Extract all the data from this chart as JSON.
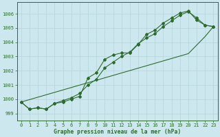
{
  "title": "Graphe pression niveau de la mer (hPa)",
  "x": [
    0,
    1,
    2,
    3,
    4,
    5,
    6,
    7,
    8,
    9,
    10,
    11,
    12,
    13,
    14,
    15,
    16,
    17,
    18,
    19,
    20,
    21,
    22,
    23
  ],
  "y_line1": [
    999.8,
    999.3,
    999.4,
    999.3,
    999.7,
    999.9,
    1000.1,
    1000.4,
    1001.0,
    1001.4,
    1002.2,
    1002.6,
    1003.0,
    1003.3,
    1003.9,
    1004.3,
    1004.6,
    1005.1,
    1005.5,
    1005.9,
    1006.15,
    1005.7,
    1005.2,
    1005.1
  ],
  "y_line2": [
    999.8,
    999.3,
    999.4,
    999.3,
    999.7,
    999.8,
    1000.0,
    1000.2,
    1001.5,
    1001.85,
    1002.8,
    1003.1,
    1003.25,
    1003.25,
    1003.85,
    1004.55,
    1004.85,
    1005.35,
    1005.7,
    1006.05,
    1006.2,
    1005.55,
    1005.2,
    1005.1
  ],
  "y_line3_straight": [
    999.8,
    999.97,
    1000.14,
    1000.31,
    1000.48,
    1000.65,
    1000.82,
    1000.99,
    1001.16,
    1001.33,
    1001.5,
    1001.67,
    1001.84,
    1002.01,
    1002.18,
    1002.35,
    1002.52,
    1002.69,
    1002.86,
    1003.03,
    1003.2,
    1003.8,
    1004.4,
    1005.1
  ],
  "bg_color": "#cce8ee",
  "grid_color": "#b8d8dd",
  "line_color": "#2d6a2d",
  "marker": "D",
  "markersize": 2.0,
  "ylim": [
    998.5,
    1006.8
  ],
  "yticks": [
    999,
    1000,
    1001,
    1002,
    1003,
    1004,
    1005,
    1006
  ],
  "xlim": [
    -0.5,
    23.5
  ],
  "xticks": [
    0,
    1,
    2,
    3,
    4,
    5,
    6,
    7,
    8,
    9,
    10,
    11,
    12,
    13,
    14,
    15,
    16,
    17,
    18,
    19,
    20,
    21,
    22,
    23
  ],
  "tick_color": "#2d6a2d",
  "linewidth": 0.8,
  "tick_fontsize": 5.0,
  "xlabel_fontsize": 5.8
}
